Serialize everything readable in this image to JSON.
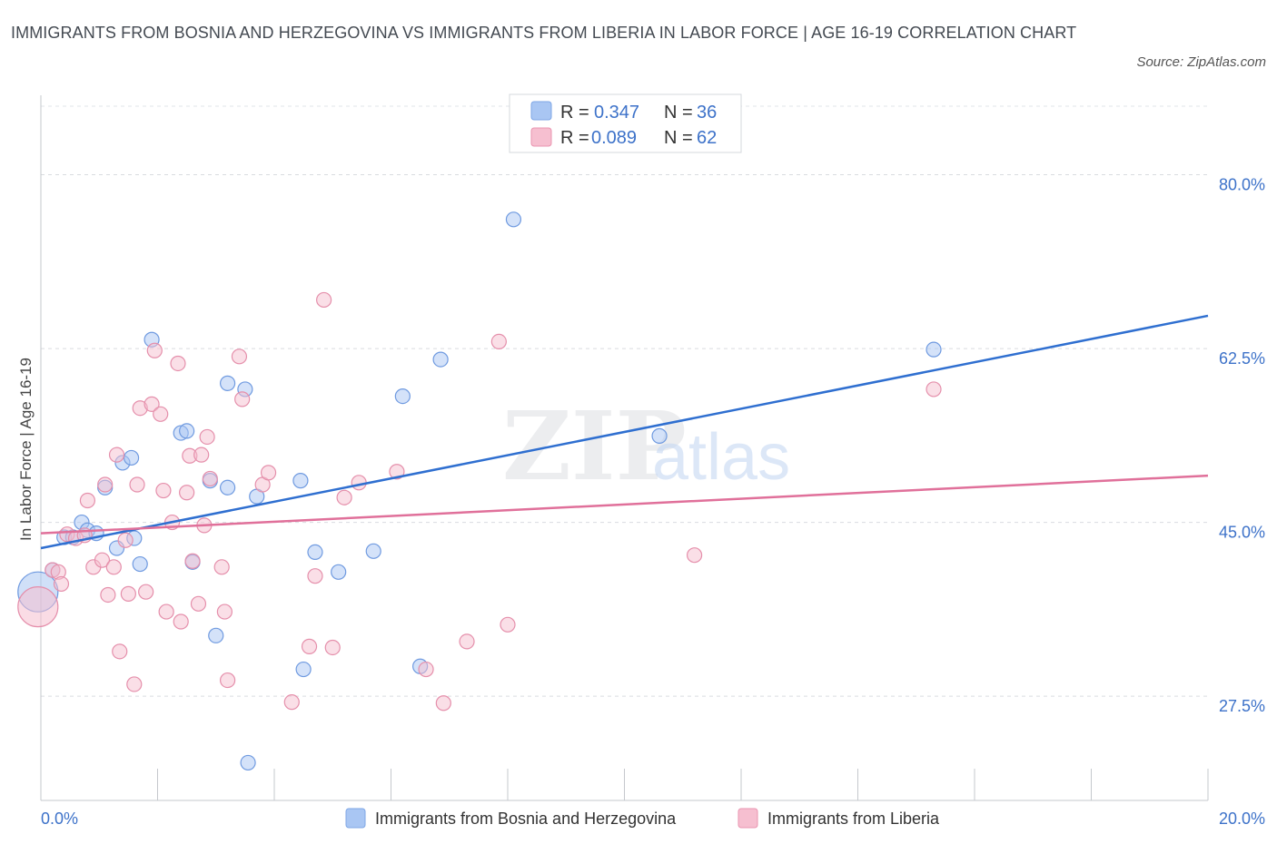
{
  "title": "IMMIGRANTS FROM BOSNIA AND HERZEGOVINA VS IMMIGRANTS FROM LIBERIA IN LABOR FORCE | AGE 16-19 CORRELATION CHART",
  "source": "Source: ZipAtlas.com",
  "watermark": {
    "zip": "ZIP",
    "atlas": "atlas"
  },
  "stats_legend": {
    "rows": [
      {
        "r_label": "R =",
        "r_value": "0.347",
        "n_label": "N =",
        "n_value": "36",
        "color": "#a9c6f3",
        "stroke": "#7ea6e6"
      },
      {
        "r_label": "R =",
        "r_value": "0.089",
        "n_label": "N =",
        "n_value": "62",
        "color": "#f6bfd0",
        "stroke": "#ea94b0"
      }
    ]
  },
  "chart_data": {
    "type": "scatter",
    "title": "IMMIGRANTS FROM BOSNIA AND HERZEGOVINA VS IMMIGRANTS FROM LIBERIA IN LABOR FORCE | AGE 16-19 CORRELATION CHART",
    "xlabel": "",
    "ylabel": "In Labor Force | Age 16-19",
    "xlim": [
      0,
      20
    ],
    "ylim": [
      17,
      88
    ],
    "x_tick_labels": [
      "0.0%",
      "20.0%"
    ],
    "y_ticks": [
      27.5,
      45.0,
      62.5,
      80.0
    ],
    "y_tick_labels": [
      "27.5%",
      "45.0%",
      "62.5%",
      "80.0%"
    ],
    "grid": true,
    "legend_position": "bottom",
    "series": [
      {
        "name": "Immigrants from Bosnia and Herzegovina",
        "color": "#a9c6f3",
        "stroke": "#6f9ae0",
        "line_color": "#2f6fd0",
        "trend": {
          "x": [
            0,
            20
          ],
          "y": [
            42.4,
            65.8
          ]
        },
        "points": [
          {
            "x": -0.05,
            "y": 38.0,
            "big": true
          },
          {
            "x": 0.2,
            "y": 40.2
          },
          {
            "x": 0.4,
            "y": 43.5
          },
          {
            "x": 0.55,
            "y": 43.5
          },
          {
            "x": 0.7,
            "y": 45.0
          },
          {
            "x": 0.8,
            "y": 44.2
          },
          {
            "x": 0.95,
            "y": 43.9
          },
          {
            "x": 1.1,
            "y": 48.5
          },
          {
            "x": 1.3,
            "y": 42.4
          },
          {
            "x": 1.4,
            "y": 51.0
          },
          {
            "x": 1.55,
            "y": 51.5
          },
          {
            "x": 1.6,
            "y": 43.4
          },
          {
            "x": 1.7,
            "y": 40.8
          },
          {
            "x": 1.9,
            "y": 63.4
          },
          {
            "x": 2.4,
            "y": 54.0
          },
          {
            "x": 2.5,
            "y": 54.2
          },
          {
            "x": 2.6,
            "y": 41.0
          },
          {
            "x": 2.9,
            "y": 49.2
          },
          {
            "x": 3.2,
            "y": 48.5
          },
          {
            "x": 3.2,
            "y": 59.0
          },
          {
            "x": 3.0,
            "y": 33.6
          },
          {
            "x": 3.5,
            "y": 58.4
          },
          {
            "x": 3.55,
            "y": 20.8
          },
          {
            "x": 3.7,
            "y": 47.6
          },
          {
            "x": 4.45,
            "y": 49.2
          },
          {
            "x": 4.5,
            "y": 30.2
          },
          {
            "x": 4.7,
            "y": 42.0
          },
          {
            "x": 5.1,
            "y": 40.0
          },
          {
            "x": 5.7,
            "y": 42.1
          },
          {
            "x": 6.2,
            "y": 57.7
          },
          {
            "x": 6.5,
            "y": 30.5
          },
          {
            "x": 6.85,
            "y": 61.4
          },
          {
            "x": 8.1,
            "y": 75.5
          },
          {
            "x": 10.6,
            "y": 53.7
          },
          {
            "x": 15.3,
            "y": 62.4
          }
        ]
      },
      {
        "name": "Immigrants from Liberia",
        "color": "#f6bfd0",
        "stroke": "#e58fab",
        "line_color": "#e0709a",
        "trend": {
          "x": [
            0,
            20
          ],
          "y": [
            43.9,
            49.7
          ]
        },
        "points": [
          {
            "x": -0.05,
            "y": 36.5,
            "big": true
          },
          {
            "x": 0.2,
            "y": 40.2
          },
          {
            "x": 0.3,
            "y": 40.0
          },
          {
            "x": 0.35,
            "y": 38.8
          },
          {
            "x": 0.45,
            "y": 43.8
          },
          {
            "x": 0.6,
            "y": 43.4
          },
          {
            "x": 0.75,
            "y": 43.7
          },
          {
            "x": 0.8,
            "y": 47.2
          },
          {
            "x": 0.9,
            "y": 40.5
          },
          {
            "x": 1.05,
            "y": 41.2
          },
          {
            "x": 1.1,
            "y": 48.8
          },
          {
            "x": 1.15,
            "y": 37.7
          },
          {
            "x": 1.25,
            "y": 40.5
          },
          {
            "x": 1.3,
            "y": 51.8
          },
          {
            "x": 1.35,
            "y": 32.0
          },
          {
            "x": 1.45,
            "y": 43.2
          },
          {
            "x": 1.5,
            "y": 37.8
          },
          {
            "x": 1.6,
            "y": 28.7
          },
          {
            "x": 1.65,
            "y": 48.8
          },
          {
            "x": 1.7,
            "y": 56.5
          },
          {
            "x": 1.8,
            "y": 38.0
          },
          {
            "x": 1.9,
            "y": 56.9
          },
          {
            "x": 1.95,
            "y": 62.3
          },
          {
            "x": 2.05,
            "y": 55.9
          },
          {
            "x": 2.1,
            "y": 48.2
          },
          {
            "x": 2.15,
            "y": 36.0
          },
          {
            "x": 2.25,
            "y": 45.0
          },
          {
            "x": 2.35,
            "y": 61.0
          },
          {
            "x": 2.4,
            "y": 35.0
          },
          {
            "x": 2.5,
            "y": 48.0
          },
          {
            "x": 2.55,
            "y": 51.7
          },
          {
            "x": 2.6,
            "y": 41.1
          },
          {
            "x": 2.7,
            "y": 36.8
          },
          {
            "x": 2.75,
            "y": 51.8
          },
          {
            "x": 2.8,
            "y": 44.7
          },
          {
            "x": 2.85,
            "y": 53.6
          },
          {
            "x": 2.9,
            "y": 49.4
          },
          {
            "x": 3.1,
            "y": 40.5
          },
          {
            "x": 3.15,
            "y": 36.0
          },
          {
            "x": 3.2,
            "y": 29.1
          },
          {
            "x": 3.4,
            "y": 61.7
          },
          {
            "x": 3.45,
            "y": 57.4
          },
          {
            "x": 3.8,
            "y": 48.8
          },
          {
            "x": 3.9,
            "y": 50.0
          },
          {
            "x": 4.3,
            "y": 26.9
          },
          {
            "x": 4.6,
            "y": 32.5
          },
          {
            "x": 4.7,
            "y": 39.6
          },
          {
            "x": 4.85,
            "y": 67.4
          },
          {
            "x": 5.0,
            "y": 32.4
          },
          {
            "x": 5.2,
            "y": 47.5
          },
          {
            "x": 5.45,
            "y": 49.0
          },
          {
            "x": 6.1,
            "y": 50.1
          },
          {
            "x": 6.6,
            "y": 30.2
          },
          {
            "x": 6.9,
            "y": 26.8
          },
          {
            "x": 7.3,
            "y": 33.0
          },
          {
            "x": 7.85,
            "y": 63.2
          },
          {
            "x": 8.0,
            "y": 34.7
          },
          {
            "x": 11.2,
            "y": 41.7
          },
          {
            "x": 15.3,
            "y": 58.4
          }
        ]
      }
    ]
  }
}
